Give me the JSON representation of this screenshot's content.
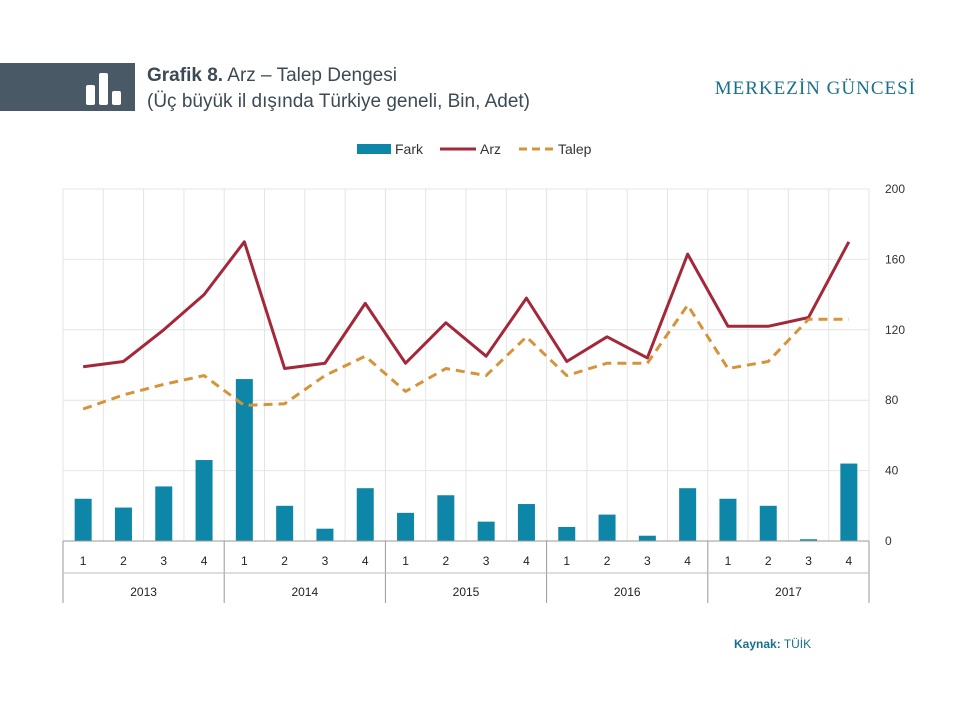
{
  "header": {
    "title_bold": "Grafik 8.",
    "title_rest": "Arz – Talep Dengesi",
    "subtitle": "(Üç büyük il dışında  Türkiye geneli, Bin, Adet)",
    "brand": "MERKEZİN GÜNCESİ",
    "icon": "bar-chart-icon"
  },
  "footer": {
    "source_label": "Kaynak:",
    "source_value": "TÜİK"
  },
  "colors": {
    "header_bar": "#4a5966",
    "fark": "#0e86a8",
    "arz": "#a3283a",
    "talep": "#d6943a",
    "brand": "#1a6f8c"
  },
  "chart_data": {
    "type": "bar+line",
    "legend": [
      "Fark",
      "Arz",
      "Talep"
    ],
    "legend_position": "top-center",
    "grid": true,
    "y_axis_position": "right",
    "ylim": [
      0,
      200
    ],
    "yticks": [
      0,
      40,
      80,
      120,
      160,
      200
    ],
    "quarters": [
      "1",
      "2",
      "3",
      "4",
      "1",
      "2",
      "3",
      "4",
      "1",
      "2",
      "3",
      "4",
      "1",
      "2",
      "3",
      "4",
      "1",
      "2",
      "3",
      "4"
    ],
    "years": [
      "2013",
      "2014",
      "2015",
      "2016",
      "2017"
    ],
    "series": [
      {
        "name": "Fark",
        "kind": "bar",
        "values": [
          24,
          19,
          31,
          46,
          92,
          20,
          7,
          30,
          16,
          26,
          11,
          21,
          8,
          15,
          3,
          30,
          24,
          20,
          1,
          44
        ]
      },
      {
        "name": "Arz",
        "kind": "line",
        "values": [
          99,
          102,
          120,
          140,
          170,
          98,
          101,
          135,
          101,
          124,
          105,
          138,
          102,
          116,
          104,
          163,
          122,
          122,
          127,
          170
        ]
      },
      {
        "name": "Talep",
        "kind": "dashed-line",
        "values": [
          75,
          83,
          89,
          94,
          77,
          78,
          94,
          105,
          85,
          98,
          94,
          116,
          94,
          101,
          101,
          134,
          98,
          102,
          126,
          126
        ]
      }
    ]
  }
}
